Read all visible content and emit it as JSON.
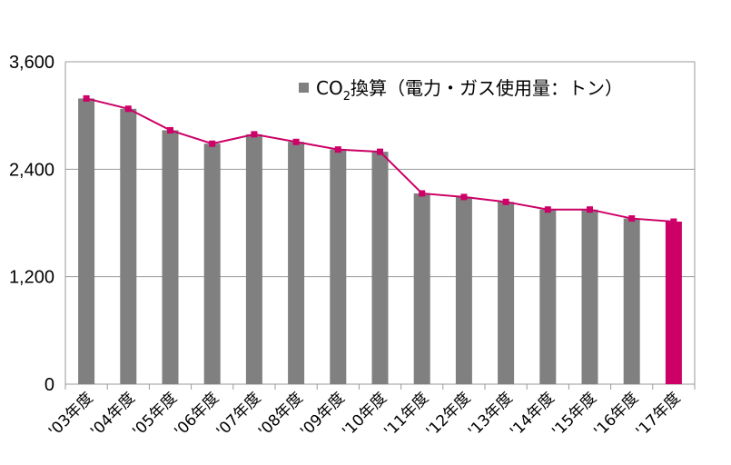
{
  "chart_data": {
    "type": "bar",
    "categories": [
      "'03年度",
      "'04年度",
      "'05年度",
      "'06年度",
      "'07年度",
      "'08年度",
      "'09年度",
      "'10年度",
      "'11年度",
      "'12年度",
      "'13年度",
      "'14年度",
      "'15年度",
      "'16年度",
      "'17年度"
    ],
    "series": [
      {
        "name": "CO2換算（電力・ガス使用量：トン）",
        "values": [
          3190,
          3075,
          2835,
          2685,
          2790,
          2705,
          2620,
          2595,
          2130,
          2090,
          2035,
          1950,
          1950,
          1850,
          1815
        ]
      }
    ],
    "y_ticks": [
      "0",
      "1,200",
      "2,400",
      "3,600"
    ],
    "ylim": [
      0,
      3600
    ],
    "grid": true,
    "legend": {
      "prefix": "CO",
      "subscript": "2",
      "suffix": "換算（電力・ガス使用量：トン）",
      "placement": "top-right"
    },
    "highlight_index": 14,
    "colors": {
      "bar": "#808080",
      "highlight_bar": "#cc0066",
      "line": "#cc0066",
      "marker": "#cc0066",
      "grid": "#9a9a9a",
      "axis": "#9a9a9a"
    }
  }
}
